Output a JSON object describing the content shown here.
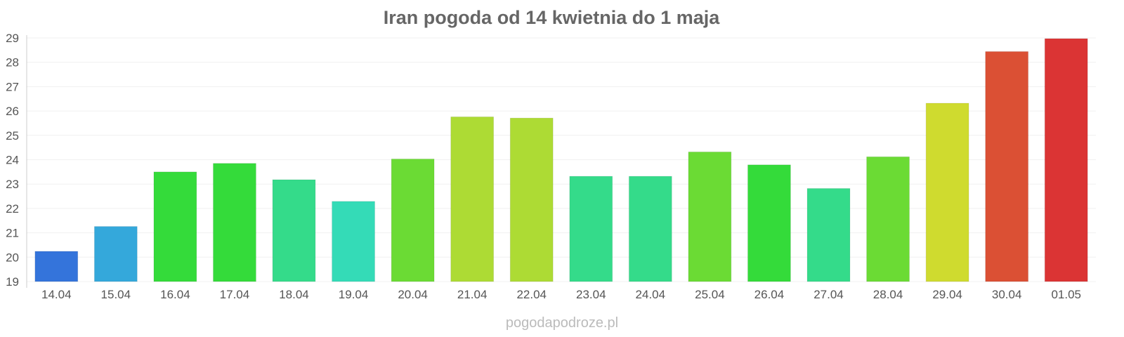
{
  "chart_data": {
    "type": "bar",
    "title": "Iran pogoda od 14 kwietnia do 1 maja",
    "xlabel": "",
    "ylabel": "",
    "ylim": [
      19,
      29
    ],
    "yticks": [
      "19",
      "20",
      "21",
      "22",
      "23",
      "24",
      "25",
      "26",
      "27",
      "28",
      "29"
    ],
    "grid": true,
    "categories": [
      "14.04",
      "15.04",
      "16.04",
      "17.04",
      "18.04",
      "19.04",
      "20.04",
      "21.04",
      "22.04",
      "23.04",
      "24.04",
      "25.04",
      "26.04",
      "27.04",
      "28.04",
      "29.04",
      "30.04",
      "01.05"
    ],
    "values": [
      20.24,
      21.26,
      23.5,
      23.85,
      23.18,
      22.29,
      24.03,
      25.76,
      25.71,
      23.32,
      23.32,
      24.32,
      23.79,
      22.82,
      24.12,
      26.32,
      28.44,
      28.97
    ],
    "colors": [
      "#3474db",
      "#34a8db",
      "#34db3a",
      "#34db3a",
      "#34db8a",
      "#34dbb7",
      "#6bdb34",
      "#addb34",
      "#addb34",
      "#34db8a",
      "#34db8a",
      "#6bdb34",
      "#34db3a",
      "#34db8a",
      "#6bdb34",
      "#cfdb2f",
      "#db5034",
      "#db3434"
    ]
  },
  "credit": "pogodapodroze.pl"
}
